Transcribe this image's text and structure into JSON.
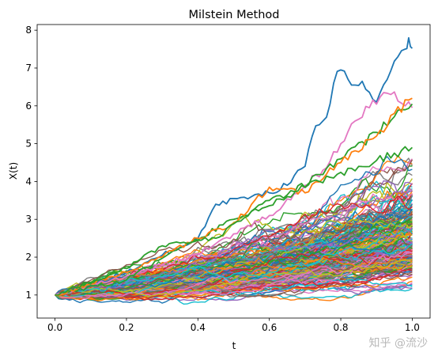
{
  "chart_data": {
    "type": "line",
    "title": "Milstein Method",
    "xlabel": "t",
    "ylabel": "X(t)",
    "xlim": [
      -0.05,
      1.05
    ],
    "ylim": [
      0.39,
      8.15
    ],
    "x_ticks": [
      "0.0",
      "0.2",
      "0.4",
      "0.6",
      "0.8",
      "1.0"
    ],
    "x_tick_values": [
      0.0,
      0.2,
      0.4,
      0.6,
      0.8,
      1.0
    ],
    "y_ticks": [
      "1",
      "2",
      "3",
      "4",
      "5",
      "6",
      "7",
      "8"
    ],
    "y_tick_values": [
      1,
      2,
      3,
      4,
      5,
      6,
      7,
      8
    ],
    "grid": false,
    "legend": "none",
    "x0": 1.0,
    "t_start": 0.0,
    "t_end": 1.0,
    "n_paths": 250,
    "highlighted_paths": [
      {
        "color": "#1f77b4",
        "points": [
          [
            0.0,
            1.0
          ],
          [
            0.1,
            1.25
          ],
          [
            0.2,
            1.6
          ],
          [
            0.3,
            2.05
          ],
          [
            0.4,
            2.5
          ],
          [
            0.45,
            3.4
          ],
          [
            0.5,
            3.55
          ],
          [
            0.55,
            3.6
          ],
          [
            0.6,
            3.7
          ],
          [
            0.65,
            3.9
          ],
          [
            0.7,
            4.4
          ],
          [
            0.72,
            5.2
          ],
          [
            0.74,
            5.5
          ],
          [
            0.76,
            5.7
          ],
          [
            0.78,
            6.6
          ],
          [
            0.8,
            6.95
          ],
          [
            0.83,
            6.55
          ],
          [
            0.86,
            6.65
          ],
          [
            0.9,
            6.1
          ],
          [
            0.93,
            6.7
          ],
          [
            0.96,
            7.3
          ],
          [
            0.98,
            7.5
          ],
          [
            0.99,
            7.8
          ],
          [
            1.0,
            7.52
          ]
        ]
      },
      {
        "color": "#e377c2",
        "points": [
          [
            0.0,
            1.0
          ],
          [
            0.2,
            1.5
          ],
          [
            0.4,
            2.1
          ],
          [
            0.6,
            3.1
          ],
          [
            0.75,
            4.3
          ],
          [
            0.8,
            5.0
          ],
          [
            0.84,
            5.6
          ],
          [
            0.88,
            5.95
          ],
          [
            0.92,
            6.35
          ],
          [
            0.94,
            6.3
          ],
          [
            0.98,
            6.0
          ],
          [
            1.0,
            5.95
          ]
        ]
      },
      {
        "color": "#2ca02c",
        "points": [
          [
            0.0,
            1.0
          ],
          [
            0.2,
            1.4
          ],
          [
            0.35,
            2.25
          ],
          [
            0.5,
            3.0
          ],
          [
            0.65,
            3.6
          ],
          [
            0.8,
            4.6
          ],
          [
            0.9,
            5.3
          ],
          [
            0.97,
            5.9
          ],
          [
            1.0,
            6.05
          ]
        ]
      },
      {
        "color": "#ff7f0e",
        "points": [
          [
            0.0,
            1.0
          ],
          [
            0.2,
            1.6
          ],
          [
            0.4,
            2.5
          ],
          [
            0.5,
            2.9
          ],
          [
            0.6,
            3.85
          ],
          [
            0.7,
            3.7
          ],
          [
            0.8,
            4.5
          ],
          [
            0.9,
            5.2
          ],
          [
            0.95,
            5.8
          ],
          [
            1.0,
            6.2
          ]
        ]
      },
      {
        "color": "#2ca02c",
        "points": [
          [
            0.0,
            1.0
          ],
          [
            0.2,
            1.7
          ],
          [
            0.3,
            2.3
          ],
          [
            0.45,
            2.5
          ],
          [
            0.6,
            3.5
          ],
          [
            0.7,
            3.85
          ],
          [
            0.85,
            4.4
          ],
          [
            1.0,
            4.9
          ]
        ]
      }
    ],
    "band_summary": {
      "points_t": [
        0.0,
        0.2,
        0.4,
        0.6,
        0.8,
        1.0
      ],
      "lower": [
        1.0,
        0.85,
        0.8,
        0.8,
        0.95,
        1.1
      ],
      "typical_upper": [
        1.0,
        1.7,
        2.3,
        3.2,
        4.0,
        5.0
      ]
    },
    "palette": [
      "#1f77b4",
      "#ff7f0e",
      "#2ca02c",
      "#d62728",
      "#9467bd",
      "#8c564b",
      "#e377c2",
      "#7f7f7f",
      "#bcbd22",
      "#17becf"
    ],
    "watermark": "知乎 @流沙"
  }
}
